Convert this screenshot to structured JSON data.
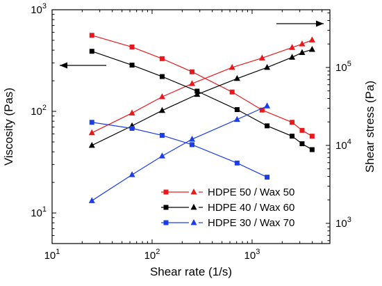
{
  "chart_data": {
    "type": "line",
    "x_label": "Shear rate (1/s)",
    "y_label_left": "Viscosity (Pas)",
    "y_label_right": "Shear stress (Pa)",
    "x_scale": "log",
    "y_scale_left": "log",
    "y_scale_right": "log",
    "x_range": [
      10,
      6000
    ],
    "y_left_range": [
      5,
      1000
    ],
    "y_right_range": [
      550,
      550000
    ],
    "x_ticks": [
      {
        "value": 10,
        "base": "10",
        "exp": "1"
      },
      {
        "value": 100,
        "base": "10",
        "exp": "2"
      },
      {
        "value": 1000,
        "base": "10",
        "exp": "3"
      }
    ],
    "y_left_ticks": [
      {
        "value": 10,
        "base": "10",
        "exp": "1"
      },
      {
        "value": 100,
        "base": "10",
        "exp": "2"
      },
      {
        "value": 1000,
        "base": "10",
        "exp": "3"
      }
    ],
    "y_right_ticks": [
      {
        "value": 1000,
        "base": "10",
        "exp": "3"
      },
      {
        "value": 10000,
        "base": "10",
        "exp": "4"
      },
      {
        "value": 100000,
        "base": "10",
        "exp": "5"
      }
    ],
    "series": [
      {
        "name": "HDPE 50 / Wax 50",
        "color": "#e8191c",
        "viscosity": {
          "x": [
            25,
            63,
            126,
            251,
            631,
            1259,
            2512,
            3162,
            3981
          ],
          "y": [
            560,
            430,
            330,
            245,
            155,
            103,
            78,
            65,
            57
          ]
        },
        "shear_stress": {
          "x": [
            25,
            63,
            126,
            251,
            631,
            1259,
            2512,
            3162,
            3981
          ],
          "y": [
            14500,
            26000,
            42000,
            62000,
            100000,
            132000,
            180000,
            200000,
            225000
          ]
        }
      },
      {
        "name": "HDPE 40 / Wax 60",
        "color": "#000000",
        "viscosity": {
          "x": [
            25,
            63,
            126,
            282,
            708,
            1413,
            2512,
            3162,
            3981
          ],
          "y": [
            390,
            285,
            220,
            158,
            104,
            72,
            57,
            48,
            42
          ]
        },
        "shear_stress": {
          "x": [
            25,
            63,
            126,
            282,
            708,
            1413,
            2512,
            3162,
            3981
          ],
          "y": [
            10000,
            17800,
            28000,
            45000,
            72000,
            100000,
            135000,
            155000,
            170000
          ]
        }
      },
      {
        "name": "HDPE 30 / Wax 70",
        "color": "#1c3ee8",
        "viscosity": {
          "x": [
            25,
            63,
            126,
            251,
            708,
            1413
          ],
          "y": [
            78,
            68,
            58,
            47,
            31,
            22.5
          ]
        },
        "shear_stress": {
          "x": [
            25,
            63,
            126,
            251,
            708,
            1413
          ],
          "y": [
            1950,
            4200,
            7300,
            12000,
            21500,
            32000
          ]
        }
      }
    ],
    "marker_viscosity": "square",
    "marker_shear_stress": "triangle",
    "annotations": [
      {
        "type": "arrow",
        "direction": "left",
        "refers_to": "viscosity axis"
      },
      {
        "type": "arrow",
        "direction": "right",
        "refers_to": "shear stress axis"
      }
    ],
    "legend_position": "bottom-right",
    "grid": false
  }
}
